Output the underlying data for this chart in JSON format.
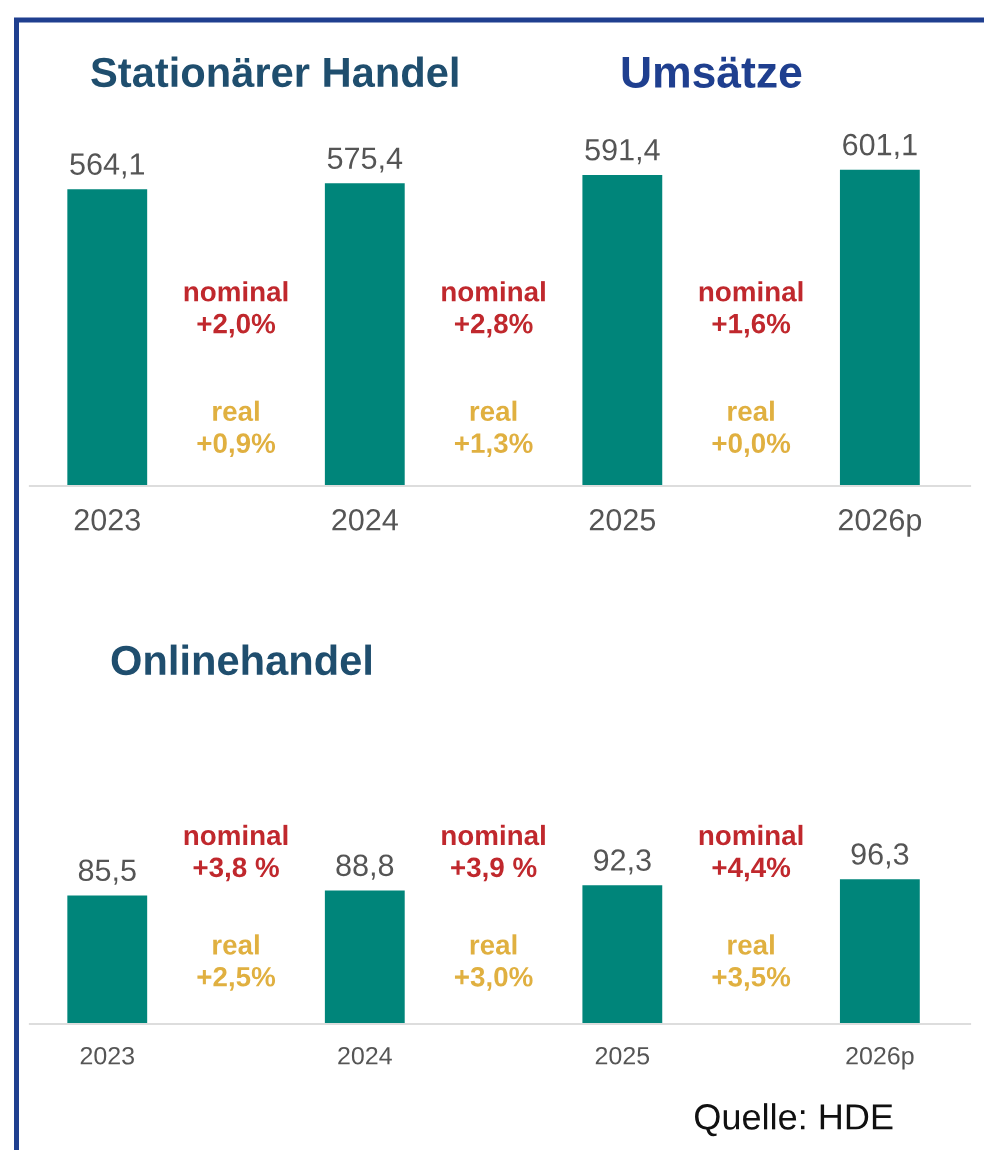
{
  "chart_data": [
    {
      "type": "bar",
      "title": "Stationärer Handel",
      "subtitle": "Umsätze",
      "categories": [
        "2023",
        "2024",
        "2025",
        "2026p"
      ],
      "values": [
        564.1,
        575.4,
        591.4,
        601.1
      ],
      "value_labels": [
        "564,1",
        "575,4",
        "591,4",
        "601,1"
      ],
      "color": "#00857a",
      "tick_labels": "x",
      "grid": false,
      "legend": false,
      "annotations": [
        "nominal\n+2,0%",
        "real\n+0,9%",
        "nominal\n+2,8%",
        "real\n+1,3%",
        "nominal\n+1,6%",
        "real\n+0,0%"
      ]
    },
    {
      "type": "bar",
      "title": "Onlinehandel",
      "categories": [
        "2023",
        "2024",
        "2025",
        "2026p"
      ],
      "values": [
        85.5,
        88.8,
        92.3,
        96.3
      ],
      "value_labels": [
        "85,5",
        "88,8",
        "92,3",
        "96,3"
      ],
      "color": "#00857a",
      "tick_labels": "x",
      "grid": false,
      "legend": false,
      "annotations": [
        "nominal\n+3,8 %",
        "real\n+2,5%",
        "nominal\n+3,9 %",
        "real\n+3,0%",
        "nominal\n+4,4%",
        "real\n+3,5%",
        "Quelle: HDE"
      ]
    }
  ]
}
